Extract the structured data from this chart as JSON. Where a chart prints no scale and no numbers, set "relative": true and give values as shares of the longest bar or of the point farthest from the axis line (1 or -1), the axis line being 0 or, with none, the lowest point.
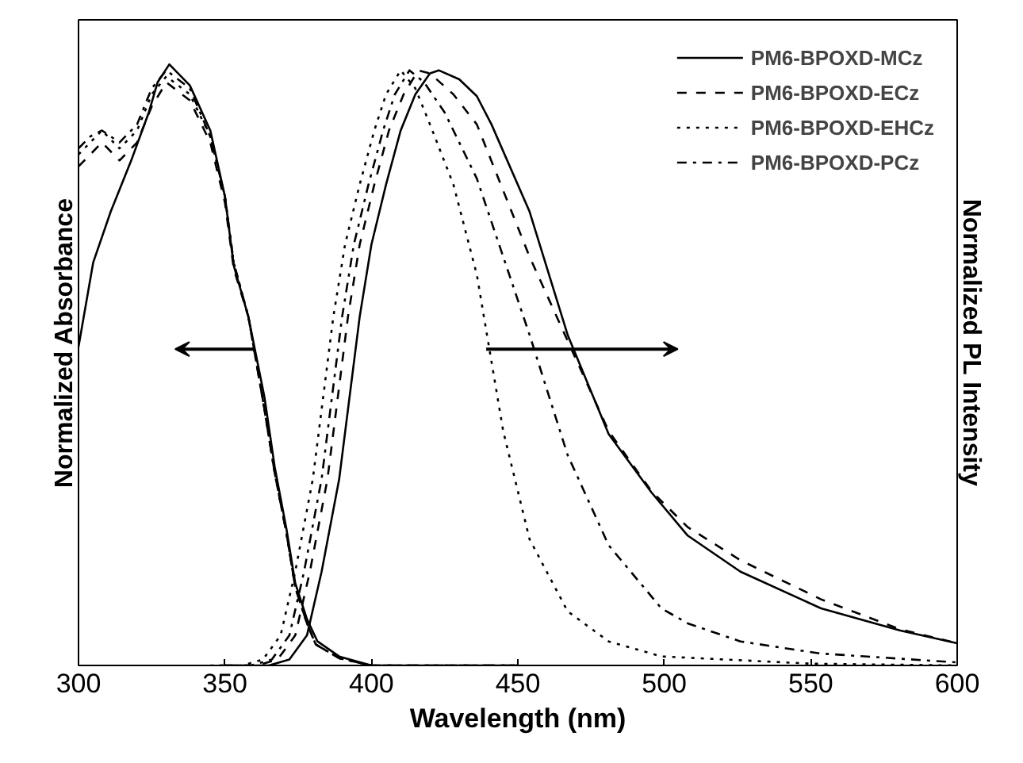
{
  "chart_data": {
    "type": "line",
    "relative": true,
    "xlabel": "Wavelength (nm)",
    "ylabel": "Normalized Absorbance",
    "y2label": "Normalized PL Intensity",
    "xlim": [
      300,
      600
    ],
    "xticks": [
      300,
      350,
      400,
      450,
      500,
      550,
      600
    ],
    "legend": "top right",
    "grid": false,
    "series": [
      {
        "color": "#000000",
        "line_style": "solid",
        "x": [
          300,
          305,
          311,
          318,
          324,
          327,
          331,
          338,
          345,
          350,
          353,
          358,
          363.5,
          367,
          371,
          374,
          378,
          381.6,
          389,
          400,
          450
        ],
        "values": [
          0.53,
          0.67,
          0.755,
          0.84,
          0.92,
          0.97,
          1.0,
          0.965,
          0.89,
          0.78,
          0.665,
          0.58,
          0.446,
          0.33,
          0.227,
          0.137,
          0.077,
          0.04,
          0.015,
          0,
          0
        ]
      },
      {
        "color": "#000000",
        "line_style": "dashed",
        "x": [
          300,
          304,
          308,
          314,
          320,
          325,
          330,
          338,
          345,
          350,
          353,
          358,
          363,
          367,
          371,
          374,
          378,
          381,
          389,
          400,
          450
        ],
        "values": [
          0.83,
          0.85,
          0.87,
          0.84,
          0.87,
          0.93,
          0.97,
          0.94,
          0.87,
          0.77,
          0.66,
          0.58,
          0.44,
          0.32,
          0.22,
          0.13,
          0.07,
          0.035,
          0.012,
          0,
          0
        ]
      },
      {
        "color": "#000000",
        "line_style": "dotted",
        "x": [
          300,
          304,
          308,
          314,
          320,
          325,
          330,
          338,
          345,
          350,
          353,
          358,
          363,
          367,
          371,
          374,
          378,
          381,
          389,
          400,
          450
        ],
        "values": [
          0.85,
          0.87,
          0.89,
          0.86,
          0.89,
          0.95,
          0.98,
          0.95,
          0.88,
          0.78,
          0.67,
          0.58,
          0.44,
          0.32,
          0.22,
          0.13,
          0.07,
          0.035,
          0.012,
          0,
          0
        ]
      },
      {
        "color": "#000000",
        "line_style": "dashdot",
        "x": [
          300,
          304,
          308,
          314,
          320,
          325,
          330,
          338,
          345,
          350,
          353,
          358,
          363,
          367,
          371,
          374,
          378,
          381,
          389,
          400,
          450
        ],
        "values": [
          0.86,
          0.88,
          0.89,
          0.87,
          0.9,
          0.96,
          0.99,
          0.96,
          0.88,
          0.78,
          0.67,
          0.58,
          0.44,
          0.32,
          0.22,
          0.13,
          0.07,
          0.035,
          0.012,
          0,
          0
        ]
      },
      {
        "name": "PM6-BPOXD-MCz",
        "color": "#000000",
        "line_style": "solid",
        "x": [
          350,
          365,
          372,
          378,
          383,
          389,
          396,
          400,
          405,
          410,
          415,
          420,
          423,
          430,
          436,
          441,
          454,
          467,
          481,
          495.6,
          508,
          526,
          553.5,
          580.6,
          600
        ],
        "values": [
          0,
          0,
          0.01,
          0.05,
          0.156,
          0.31,
          0.58,
          0.7,
          0.8,
          0.89,
          0.95,
          0.985,
          0.99,
          0.975,
          0.947,
          0.9,
          0.755,
          0.55,
          0.385,
          0.288,
          0.216,
          0.156,
          0.095,
          0.058,
          0.037
        ]
      },
      {
        "name": "PM6-BPOXD-ECz",
        "color": "#000000",
        "line_style": "dashed",
        "x": [
          350,
          361,
          368,
          374,
          379,
          385,
          392,
          396,
          401,
          406,
          411,
          416,
          420,
          428,
          436,
          454,
          467,
          481,
          495.6,
          508,
          526,
          553.5,
          580.6,
          600
        ],
        "values": [
          0,
          0,
          0.01,
          0.05,
          0.156,
          0.31,
          0.58,
          0.7,
          0.8,
          0.89,
          0.95,
          0.99,
          0.985,
          0.95,
          0.9,
          0.68,
          0.54,
          0.39,
          0.29,
          0.23,
          0.175,
          0.11,
          0.06,
          0.037
        ]
      },
      {
        "name": "PM6-BPOXD-EHCz",
        "color": "#000000",
        "line_style": "dotted",
        "x": [
          345,
          356,
          363,
          369,
          374,
          380,
          387,
          391,
          396,
          401,
          405,
          410,
          415,
          420,
          428,
          436,
          445,
          454,
          467,
          481,
          499,
          550,
          600
        ],
        "values": [
          0,
          0,
          0.01,
          0.05,
          0.156,
          0.31,
          0.58,
          0.7,
          0.8,
          0.89,
          0.95,
          0.99,
          0.96,
          0.9,
          0.8,
          0.65,
          0.39,
          0.21,
          0.09,
          0.04,
          0.015,
          0.003,
          0
        ]
      },
      {
        "name": "PM6-BPOXD-PCz",
        "color": "#000000",
        "line_style": "dashdot",
        "x": [
          348,
          359,
          366,
          372,
          377,
          383,
          390,
          394,
          399,
          404,
          408,
          413,
          418,
          425,
          436,
          445,
          454,
          467,
          481,
          499,
          508,
          526,
          553,
          600
        ],
        "values": [
          0,
          0,
          0.01,
          0.05,
          0.156,
          0.31,
          0.58,
          0.7,
          0.8,
          0.89,
          0.95,
          0.99,
          0.97,
          0.92,
          0.81,
          0.68,
          0.55,
          0.35,
          0.2,
          0.095,
          0.07,
          0.04,
          0.02,
          0.005
        ]
      }
    ]
  }
}
